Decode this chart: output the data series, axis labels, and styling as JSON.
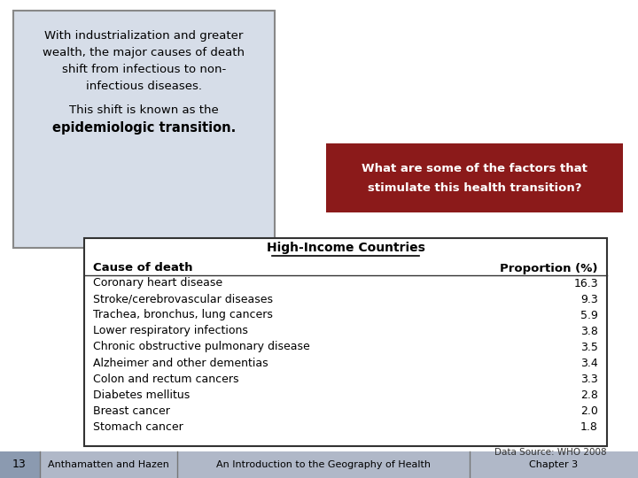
{
  "text_box_text_line1": "With industrialization and greater",
  "text_box_text_line2": "wealth, the major causes of death",
  "text_box_text_line3": "shift from infectious to non-",
  "text_box_text_line4": "infectious diseases.",
  "text_box_text_line5": "This shift is known as the",
  "text_box_text_bold": "epidemiologic transition.",
  "text_box_bg": "#d6dde8",
  "text_box_border": "#888888",
  "red_box_text_line1": "What are some of the factors that",
  "red_box_text_line2": "stimulate this health transition?",
  "red_box_bg": "#8b1a1a",
  "red_box_text_color": "#ffffff",
  "table_title": "High-Income Countries",
  "table_col1_header": "Cause of death",
  "table_col2_header": "Proportion (%)",
  "table_rows": [
    [
      "Coronary heart disease",
      "16.3"
    ],
    [
      "Stroke/cerebrovascular diseases",
      "9.3"
    ],
    [
      "Trachea, bronchus, lung cancers",
      "5.9"
    ],
    [
      "Lower respiratory infections",
      "3.8"
    ],
    [
      "Chronic obstructive pulmonary disease",
      "3.5"
    ],
    [
      "Alzheimer and other dementias",
      "3.4"
    ],
    [
      "Colon and rectum cancers",
      "3.3"
    ],
    [
      "Diabetes mellitus",
      "2.8"
    ],
    [
      "Breast cancer",
      "2.0"
    ],
    [
      "Stomach cancer",
      "1.8"
    ]
  ],
  "data_source": "Data Source: WHO 2008",
  "footer_page": "13",
  "footer_authors": "Anthamatten and Hazen",
  "footer_title": "An Introduction to the Geography of Health",
  "footer_chapter": "Chapter 3",
  "bg_color": "#ffffff",
  "footer_bg": "#b0b8c8",
  "footer_page_bg": "#8b9ab0",
  "table_border_color": "#333333",
  "table_bg": "#ffffff"
}
